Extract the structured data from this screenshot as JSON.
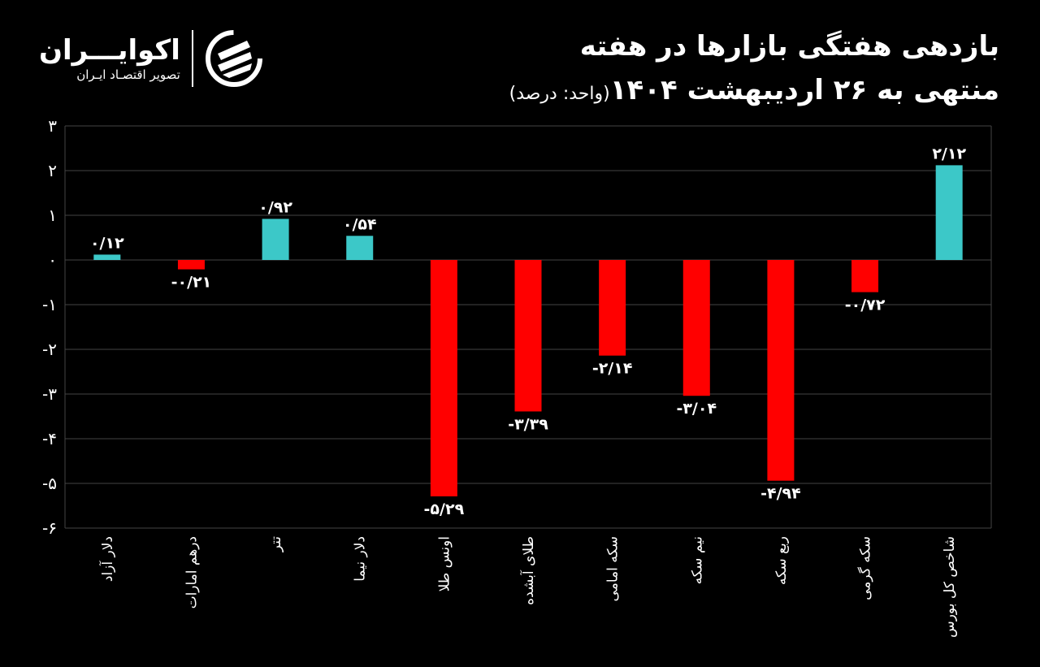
{
  "header": {
    "title_line1": "بازدهی هفتگی بازارها در هفته",
    "title_line2": "منتهی به ۲۶ اردیبهشت ۱۴۰۴",
    "unit": "(واحد: درصد)"
  },
  "logo": {
    "name": "اکوایـــران",
    "subtitle": "تصویر اقتصـاد ایـران"
  },
  "colors": {
    "positive": "#3cc8c8",
    "negative": "#ff0000",
    "background": "#000000",
    "grid": "#444444"
  },
  "chart_data": {
    "type": "bar",
    "title": "بازدهی هفتگی بازارها در هفته منتهی به ۲۶ اردیبهشت ۱۴۰۴",
    "ylabel": "",
    "xlabel": "",
    "ylim": [
      -6,
      3
    ],
    "yticks": [
      3,
      2,
      1,
      0,
      -1,
      -2,
      -3,
      -4,
      -5,
      -6
    ],
    "ytick_labels": [
      "۳",
      "۲",
      "۱",
      "۰",
      "-۱",
      "-۲",
      "-۳",
      "-۴",
      "-۵",
      "-۶"
    ],
    "grid": true,
    "categories": [
      "دلار آزاد",
      "درهم امارات",
      "تتر",
      "دلار نیما",
      "اونس طلا",
      "طلای آبشده",
      "سکه امامی",
      "نیم سکه",
      "ربع سکه",
      "سکه گرمی",
      "شاخص کل بورس"
    ],
    "values": [
      0.12,
      -0.21,
      0.92,
      0.54,
      -5.29,
      -3.39,
      -2.14,
      -3.04,
      -4.94,
      -0.72,
      2.12
    ],
    "data_labels": [
      "۰/۱۲",
      "-۰/۲۱",
      "۰/۹۲",
      "۰/۵۴",
      "-۵/۲۹",
      "-۳/۳۹",
      "-۲/۱۴",
      "-۳/۰۴",
      "-۴/۹۴",
      "-۰/۷۲",
      "۲/۱۲"
    ]
  }
}
